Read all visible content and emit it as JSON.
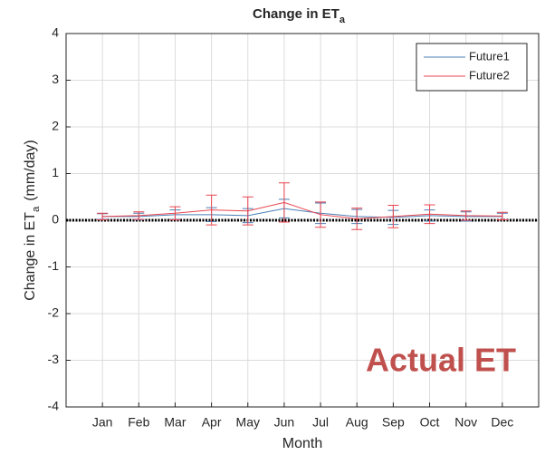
{
  "chart_data": {
    "type": "line",
    "title": "Change in ET",
    "title_subscript": "a",
    "x_label": "Month",
    "y_label": "Change in ET",
    "y_label_subscript": "a",
    "y_label_unit": "(mm/day)",
    "annotation": "Actual ET",
    "annotation_color": "#c0504d",
    "categories": [
      "Jan",
      "Feb",
      "Mar",
      "Apr",
      "May",
      "Jun",
      "Jul",
      "Aug",
      "Sep",
      "Oct",
      "Nov",
      "Dec"
    ],
    "series": [
      {
        "name": "Future1",
        "color": "#4a7fb5",
        "values": [
          0.08,
          0.08,
          0.12,
          0.12,
          0.1,
          0.25,
          0.15,
          0.08,
          0.06,
          0.1,
          0.08,
          0.08
        ],
        "errors": [
          0.06,
          0.07,
          0.1,
          0.15,
          0.15,
          0.2,
          0.22,
          0.15,
          0.15,
          0.12,
          0.1,
          0.07
        ]
      },
      {
        "name": "Future2",
        "color": "#e8454f",
        "values": [
          0.08,
          0.1,
          0.15,
          0.22,
          0.2,
          0.38,
          0.12,
          0.03,
          0.08,
          0.13,
          0.1,
          0.09
        ],
        "errors": [
          0.07,
          0.08,
          0.14,
          0.32,
          0.3,
          0.42,
          0.27,
          0.23,
          0.24,
          0.2,
          0.1,
          0.08
        ]
      }
    ],
    "ylim": [
      -4,
      4
    ],
    "yticks": [
      -4,
      -3,
      -2,
      -1,
      0,
      1,
      2,
      3,
      4
    ],
    "reference_line": 0,
    "grid": true,
    "legend": "upper right"
  }
}
